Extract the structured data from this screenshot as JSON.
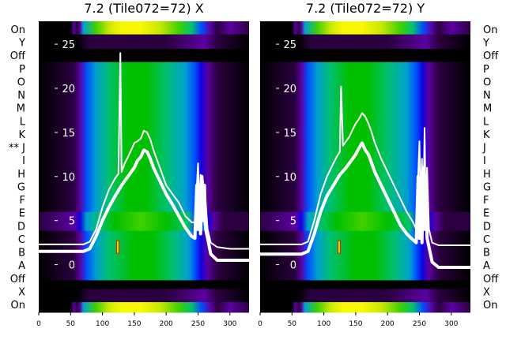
{
  "chart_data": [
    {
      "type": "heatmap",
      "title": "7.2 (Tile072=72) X",
      "xlabel": "",
      "ylabel": "",
      "xlim": [
        0,
        330
      ],
      "xticks": [
        0,
        50,
        100,
        150,
        200,
        250,
        300
      ],
      "ylim": [
        -5.4,
        27.6
      ],
      "yticks": [
        0,
        5,
        10,
        15,
        20,
        25
      ],
      "y_tick_color": "#ffffff",
      "colormap": [
        "#000000",
        "#2b0040",
        "#5b00a0",
        "#1400e0",
        "#0050ff",
        "#00a0d0",
        "#00c070",
        "#00c000",
        "#40d000",
        "#c8e800",
        "#f8f800"
      ],
      "series": [
        {
          "x": [
            0,
            70,
            80,
            90,
            100,
            110,
            120,
            125,
            128,
            130,
            135,
            140,
            145,
            150,
            155,
            160,
            165,
            170,
            175,
            180,
            190,
            200,
            210,
            220,
            230,
            240,
            245,
            250,
            252,
            254,
            256,
            258,
            260,
            262,
            265,
            270,
            280,
            300,
            330
          ],
          "y": [
            2.3,
            2.3,
            2.6,
            4.0,
            6.5,
            8.5,
            9.8,
            10.3,
            24.0,
            10.5,
            11.5,
            12.2,
            13.0,
            13.8,
            14.0,
            14.3,
            15.2,
            15.0,
            14.2,
            13.0,
            11.0,
            9.0,
            8.0,
            7.0,
            5.5,
            4.8,
            4.8,
            11.5,
            6.0,
            10.2,
            5.0,
            9.5,
            4.5,
            7.0,
            4.0,
            2.5,
            2.0,
            1.8,
            1.8
          ]
        },
        {
          "x": [
            0,
            70,
            80,
            90,
            100,
            110,
            120,
            130,
            140,
            150,
            155,
            160,
            165,
            170,
            175,
            180,
            190,
            200,
            210,
            220,
            230,
            240,
            245,
            248,
            250,
            252,
            254,
            256,
            258,
            260,
            262,
            265,
            270,
            280,
            330
          ],
          "y": [
            1.5,
            1.5,
            1.8,
            3.2,
            5.0,
            6.5,
            7.8,
            9.0,
            10.0,
            11.0,
            11.8,
            12.2,
            13.0,
            12.8,
            12.0,
            11.0,
            9.5,
            8.0,
            6.8,
            5.5,
            4.2,
            3.2,
            3.0,
            9.0,
            4.0,
            8.5,
            3.5,
            10.0,
            5.0,
            9.0,
            4.0,
            3.0,
            1.2,
            0.5,
            0.5
          ]
        }
      ],
      "markers": [
        {
          "x": 124,
          "y": 2.0
        }
      ]
    },
    {
      "type": "heatmap",
      "title": "7.2 (Tile072=72) Y",
      "xlabel": "",
      "ylabel": "",
      "xlim": [
        0,
        330
      ],
      "xticks": [
        0,
        50,
        100,
        150,
        200,
        250,
        300
      ],
      "ylim": [
        -5.4,
        27.6
      ],
      "yticks": [
        0,
        5,
        10,
        15,
        20,
        25
      ],
      "y_tick_color": "#ffffff",
      "colormap": [
        "#000000",
        "#2b0040",
        "#5b00a0",
        "#1400e0",
        "#0050ff",
        "#00a0d0",
        "#00c070",
        "#00c000",
        "#40d000",
        "#c8e800",
        "#f8f800"
      ],
      "series": [
        {
          "x": [
            0,
            65,
            75,
            85,
            95,
            105,
            115,
            120,
            125,
            127,
            130,
            135,
            140,
            145,
            150,
            155,
            160,
            165,
            170,
            175,
            180,
            190,
            200,
            210,
            220,
            230,
            240,
            245,
            250,
            252,
            254,
            256,
            258,
            260,
            262,
            265,
            270,
            280,
            330
          ],
          "y": [
            2.3,
            2.3,
            2.6,
            5.0,
            8.0,
            10.0,
            11.5,
            12.2,
            12.8,
            20.2,
            13.5,
            14.0,
            14.5,
            15.3,
            16.0,
            16.5,
            17.2,
            16.8,
            16.0,
            15.0,
            13.8,
            12.0,
            10.5,
            9.0,
            7.5,
            6.0,
            4.8,
            4.0,
            14.0,
            6.0,
            12.0,
            5.0,
            15.5,
            6.0,
            11.0,
            4.0,
            2.5,
            2.2,
            2.2
          ]
        },
        {
          "x": [
            0,
            65,
            75,
            85,
            95,
            105,
            115,
            125,
            135,
            145,
            150,
            155,
            160,
            165,
            170,
            175,
            180,
            190,
            200,
            210,
            220,
            230,
            240,
            245,
            248,
            250,
            252,
            254,
            256,
            258,
            260,
            262,
            265,
            270,
            280,
            330
          ],
          "y": [
            1.2,
            1.2,
            1.5,
            3.5,
            6.0,
            7.8,
            9.0,
            10.2,
            11.0,
            12.0,
            12.5,
            13.2,
            13.8,
            13.0,
            12.5,
            11.5,
            10.5,
            9.0,
            7.5,
            6.0,
            4.5,
            3.5,
            2.8,
            2.5,
            10.0,
            3.0,
            9.0,
            2.5,
            11.0,
            4.0,
            9.5,
            3.0,
            2.0,
            0.3,
            -0.3,
            -0.3
          ]
        }
      ],
      "markers": [
        {
          "x": 124,
          "y": 2.0
        }
      ]
    }
  ],
  "row_labels_left": [
    "On",
    "Y",
    "Off",
    "P",
    "O",
    "N",
    "M",
    "L",
    "K",
    "** J",
    "I",
    "H",
    "G",
    "F",
    "E",
    "D",
    "C",
    "B",
    "A",
    "Off",
    "X",
    "On"
  ],
  "row_labels_right": [
    "On",
    "Y",
    "Off",
    "P",
    "O",
    "N",
    "M",
    "L",
    "K",
    "J",
    "I",
    "H",
    "G",
    "F",
    "E",
    "D",
    "C",
    "B",
    "A",
    "Off",
    "X",
    "On"
  ],
  "colors": {
    "trace": "#ffffff",
    "marker_fill": "#f0d000",
    "marker_edge": "#cc2200",
    "background": "#ffffff",
    "text": "#000000"
  }
}
